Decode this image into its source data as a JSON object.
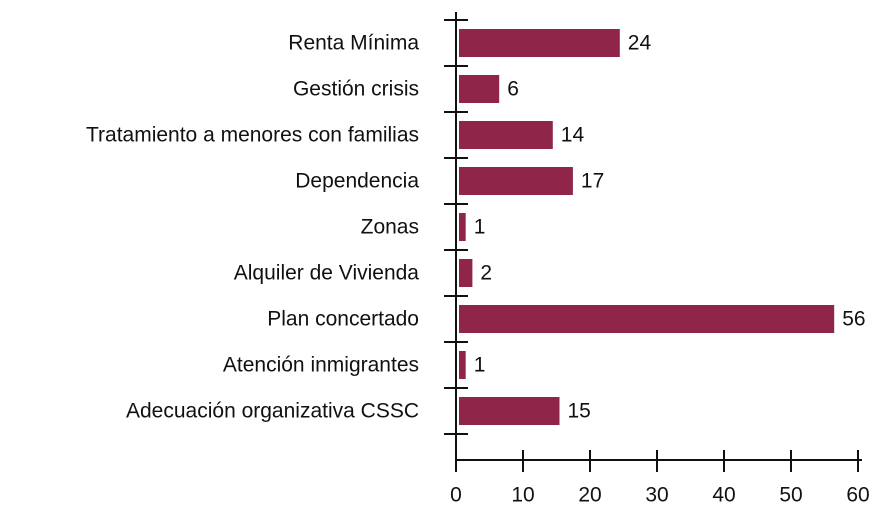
{
  "chart_data": {
    "type": "barh",
    "categories": [
      "Renta Mínima",
      "Gestión crisis",
      "Tratamiento a menores con familias",
      "Dependencia",
      "Zonas",
      "Alquiler de Vivienda",
      "Plan concertado",
      "Atención inmigrantes",
      "Adecuación organizativa CSSC"
    ],
    "values": [
      24,
      6,
      14,
      17,
      1,
      2,
      56,
      1,
      15
    ],
    "color": "#8f2649",
    "xlim": [
      0,
      60
    ],
    "xticks": [
      0,
      10,
      20,
      30,
      40,
      50,
      60
    ]
  }
}
